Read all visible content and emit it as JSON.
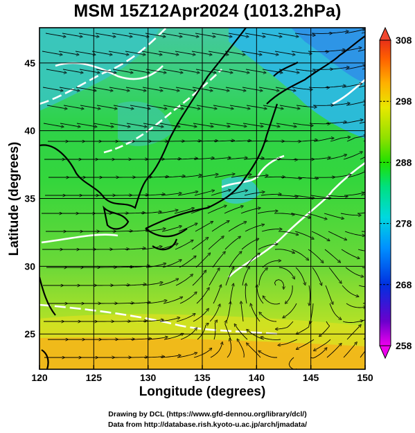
{
  "title": "MSM 15Z12Apr2024 (1013.2hPa)",
  "axes": {
    "xlabel": "Longitude (degrees)",
    "ylabel": "Latitude  (degrees)",
    "xticks": [
      "120",
      "125",
      "130",
      "135",
      "140",
      "145",
      "150"
    ],
    "yticks": [
      "25",
      "30",
      "35",
      "40",
      "45"
    ],
    "xrange": [
      120,
      150
    ],
    "yrange": [
      22.4,
      47.6
    ],
    "grid": true
  },
  "colorbar": {
    "ticks": [
      "308",
      "298",
      "288",
      "278",
      "268",
      "258"
    ],
    "range": [
      258,
      308
    ],
    "colors": [
      "#ee00ee",
      "#6a00cc",
      "#0030e0",
      "#0090ff",
      "#00d8e0",
      "#00e080",
      "#20e000",
      "#90e000",
      "#e8e800",
      "#ffb000",
      "#ff6000",
      "#e83018"
    ]
  },
  "credits": {
    "line1": "Drawing by DCL (https://www.gfd-dennou.org/library/dcl/)",
    "line2": "Data from http://database.rish.kyoto-u.ac.jp/arch/jmadata/"
  },
  "map_colors": {
    "tropical_orange": "#f6c018",
    "warm_yellow": "#c8e620",
    "temperate_green": "#30d23a",
    "cool_cyan": "#28c8e0",
    "cold_blue": "#2f8fe8",
    "contour": "#ffffff",
    "coast": "#000000"
  }
}
